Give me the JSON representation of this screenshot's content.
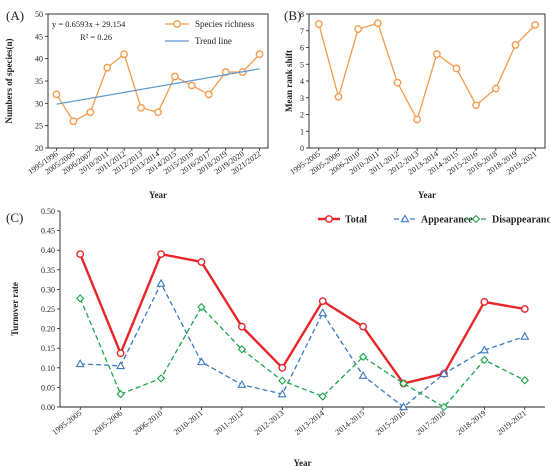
{
  "chart_data": [
    {
      "panel_label": "(A)",
      "type": "line",
      "categories": [
        "1995/1996",
        "2005/2006",
        "2006/2007",
        "2010/2011",
        "2011/2012",
        "2012/2013",
        "2013/2014",
        "2014/2015",
        "2015/2016",
        "2016/2017",
        "2018/2019",
        "2019/2020",
        "2021/2022"
      ],
      "series": [
        {
          "name": "Species richness",
          "values": [
            32,
            26,
            28,
            38,
            41,
            29,
            28,
            36,
            34,
            32,
            37,
            37,
            41
          ],
          "color": "#f39c4d",
          "marker": "circle"
        },
        {
          "name": "Trend line",
          "type": "trend",
          "slope": 0.6593,
          "intercept": 29.154,
          "color": "#5b9bd5"
        }
      ],
      "equation": "y = 0.6593x + 29.154",
      "r_squared_label": "R² = 0.26",
      "xlabel": "Year",
      "ylabel": "Numbers of species(n)",
      "ylim": [
        20,
        50
      ],
      "yticks": [
        20,
        25,
        30,
        35,
        40,
        45,
        50
      ],
      "legend_position": "top-right",
      "grid": false
    },
    {
      "panel_label": "(B)",
      "type": "line",
      "categories": [
        "1995-2005",
        "2005-2006",
        "2006-2010",
        "2010-2011",
        "2011-2012",
        "2012-2013",
        "2013-2014",
        "2014-2015",
        "2015-2016",
        "2016-2018",
        "2018-2019",
        "2019-2021"
      ],
      "series": [
        {
          "name": "",
          "values": [
            7.4,
            3.05,
            7.1,
            7.45,
            3.9,
            1.7,
            5.6,
            4.75,
            2.55,
            3.55,
            6.15,
            7.35
          ],
          "color": "#f39c4d",
          "marker": "circle"
        }
      ],
      "xlabel": "Year",
      "ylabel": "Mean rank shift",
      "ylim": [
        0,
        8
      ],
      "yticks": [
        0,
        1,
        2,
        3,
        4,
        5,
        6,
        7,
        8
      ],
      "grid": false
    },
    {
      "panel_label": "(C)",
      "type": "line",
      "categories": [
        "1995-2005",
        "2005-2006",
        "2006-2010",
        "2010-2011",
        "2011-2012",
        "2012-2013",
        "2013-2014",
        "2014-2015",
        "2015-2016",
        "2017-2018",
        "2018-2019",
        "2019-2021"
      ],
      "series": [
        {
          "name": "Total",
          "values": [
            0.39,
            0.137,
            0.39,
            0.37,
            0.205,
            0.1,
            0.27,
            0.205,
            0.06,
            0.085,
            0.268,
            0.25
          ],
          "color": "#e8262a",
          "marker": "circle",
          "dash": "solid"
        },
        {
          "name": "Appearance",
          "values": [
            0.11,
            0.105,
            0.315,
            0.115,
            0.057,
            0.033,
            0.24,
            0.08,
            0.0,
            0.085,
            0.145,
            0.18
          ],
          "color": "#3a78c2",
          "marker": "triangle",
          "dash": "dashed"
        },
        {
          "name": "Disappearance",
          "values": [
            0.277,
            0.033,
            0.073,
            0.255,
            0.147,
            0.067,
            0.027,
            0.128,
            0.06,
            0.0,
            0.12,
            0.068
          ],
          "color": "#1aa54b",
          "marker": "diamond",
          "dash": "dashed"
        }
      ],
      "xlabel": "Year",
      "ylabel": "Turnover rate",
      "ylim": [
        0,
        0.5
      ],
      "yticks": [
        "0.00",
        "0.05",
        "0.10",
        "0.15",
        "0.20",
        "0.25",
        "0.30",
        "0.35",
        "0.40",
        "0.45",
        "0.50"
      ],
      "legend_position": "top-right",
      "grid": false
    }
  ]
}
